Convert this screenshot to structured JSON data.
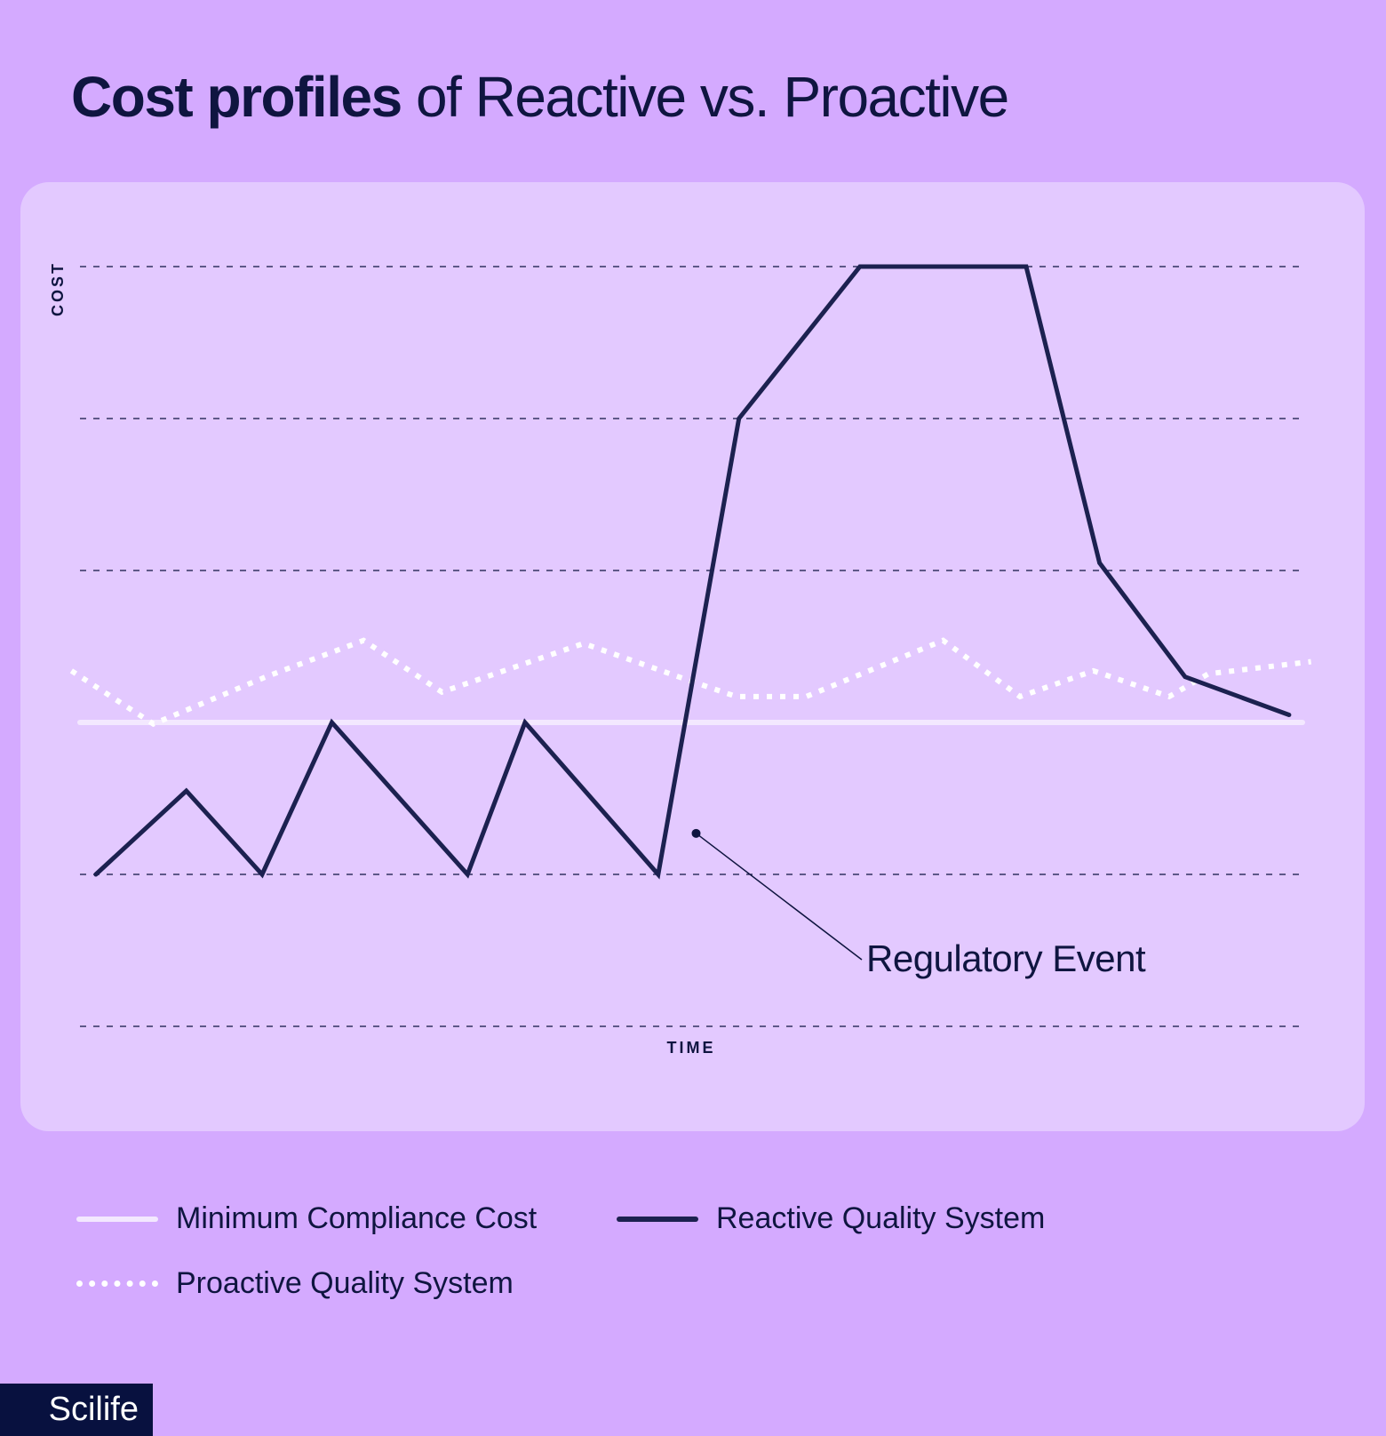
{
  "title": {
    "bold": "Cost profiles",
    "rest": " of Reactive vs. Proactive"
  },
  "brand": "Scilife",
  "colors": {
    "background": "#d4aaff",
    "panel": "#e3c9ff",
    "reactive": "#1c2150",
    "proactive": "#ffffff",
    "minimum": "#f3e8ff",
    "text": "#0f1540"
  },
  "chart_data": {
    "type": "line",
    "xlabel": "TIME",
    "ylabel": "COST",
    "xlim": [
      0,
      100
    ],
    "ylim": [
      0,
      5
    ],
    "grid": true,
    "legend_position": "bottom",
    "series": [
      {
        "name": "Minimum Compliance Cost",
        "style": "solid-light",
        "x": [
          0,
          100
        ],
        "y": [
          2,
          2
        ]
      },
      {
        "name": "Reactive Quality System",
        "style": "solid-dark",
        "x": [
          1.3,
          8.7,
          14.9,
          20.6,
          31.7,
          36.4,
          47.3,
          53.9,
          63.8,
          77.4,
          83.4,
          90.4,
          98.9
        ],
        "y": [
          1.0,
          1.55,
          1.0,
          2.0,
          1.0,
          2.0,
          1.0,
          4.0,
          5.0,
          5.0,
          3.05,
          2.3,
          2.05
        ]
      },
      {
        "name": "Proactive Quality System",
        "style": "dotted-white",
        "x": [
          -0.7,
          6.0,
          15.2,
          23.2,
          29.6,
          41.2,
          50.4,
          53.7,
          59.4,
          70.6,
          76.9,
          82.9,
          89.1,
          92.3,
          100.7
        ],
        "y": [
          2.34,
          1.99,
          2.3,
          2.54,
          2.2,
          2.52,
          2.26,
          2.17,
          2.17,
          2.54,
          2.17,
          2.34,
          2.17,
          2.32,
          2.4
        ]
      }
    ],
    "annotations": [
      {
        "text": "Regulatory Event",
        "x": 50.4,
        "y": 1.27
      }
    ]
  }
}
